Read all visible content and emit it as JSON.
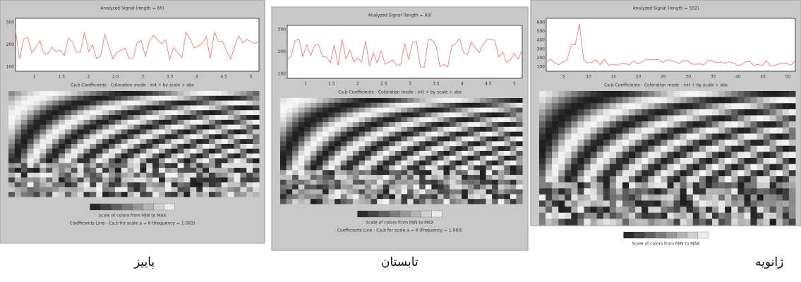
{
  "panels": [
    {
      "title": "Analyzed Signal (length = 60)",
      "xticks": [
        "1",
        "1.5",
        "2",
        "2.5",
        "3",
        "3.5",
        "4",
        "4.5",
        "5"
      ],
      "yticks": [
        "300",
        "200",
        "100"
      ],
      "coef_label": "Ca,b Coefficients - Coloration mode : init + by scale + abs",
      "colorbar_label": "Scale of colors from MIN to MAX",
      "line_label": "Coefficients Line - Ca,b for scale a = 6 (frequency = 1.083)",
      "caption": "پاییز"
    },
    {
      "title": "Analyzed Signal (length = 60)",
      "xticks": [
        "1",
        "1.5",
        "2",
        "2.5",
        "3",
        "3.5",
        "4",
        "4.5",
        "5"
      ],
      "yticks": [
        "300",
        "200",
        "100"
      ],
      "coef_label": "Ca,b Coefficients - Coloration mode : init + by scale + abs",
      "colorbar_label": "Scale of colors from MIN to MAX",
      "line_label": "Coefficients Line - Ca,b for scale a = 6 (frequency = 1.083)",
      "caption": "تابستان"
    },
    {
      "title": "Analyzed Signal (length = 532)",
      "xticks": [
        "5",
        "10",
        "15",
        "20",
        "25",
        "30",
        "35",
        "40",
        "45",
        "50"
      ],
      "yticks": [
        "600",
        "500",
        "400",
        "300",
        "200",
        "100"
      ],
      "coef_label": "Ca,b Coefficients - Coloration mode : init + by scale + abs",
      "colorbar_label": "Scale of colors from MIN to MAX",
      "caption": "ژانویه"
    }
  ]
}
